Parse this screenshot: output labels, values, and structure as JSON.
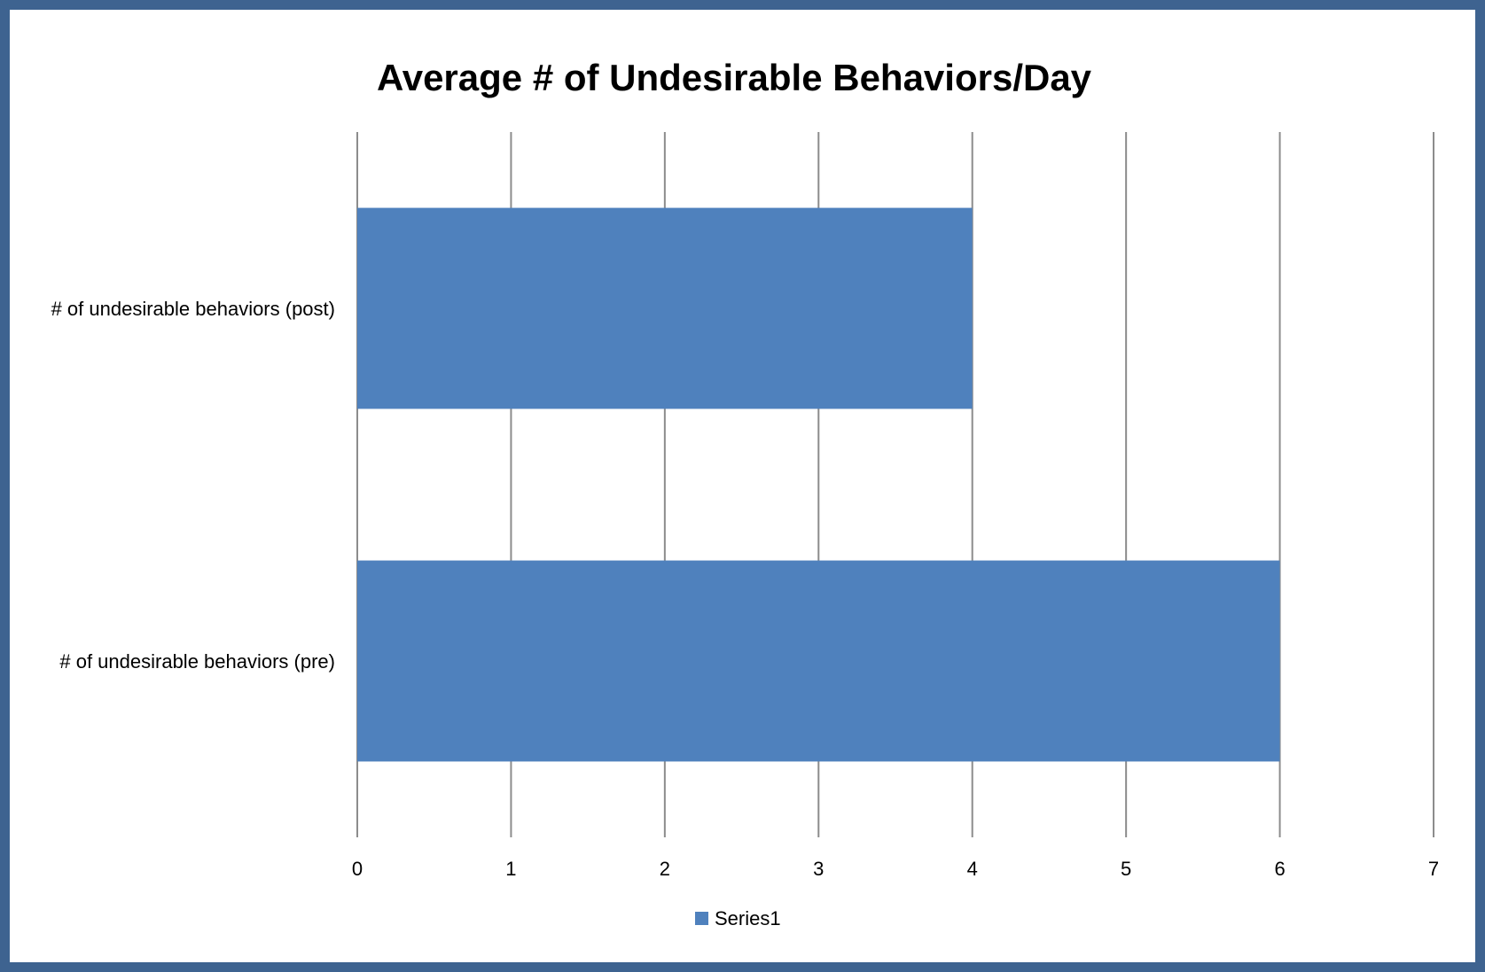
{
  "chart_data": {
    "type": "bar",
    "orientation": "horizontal",
    "title": "Average # of Undesirable Behaviors/Day",
    "categories": [
      "# of undesirable behaviors (post)",
      "# of undesirable behaviors (pre)"
    ],
    "series": [
      {
        "name": "Series1",
        "values": [
          4,
          6
        ],
        "color": "#4f81bd"
      }
    ],
    "xlabel": "",
    "ylabel": "",
    "xlim": [
      0,
      7
    ],
    "x_ticks": [
      "0",
      "1",
      "2",
      "3",
      "4",
      "5",
      "6",
      "7"
    ],
    "grid": "vertical major gridlines",
    "legend": "bottom"
  },
  "colors": {
    "frame": "#3e6390",
    "bar": "#4f81bd",
    "grid": "#8c8c8c"
  }
}
